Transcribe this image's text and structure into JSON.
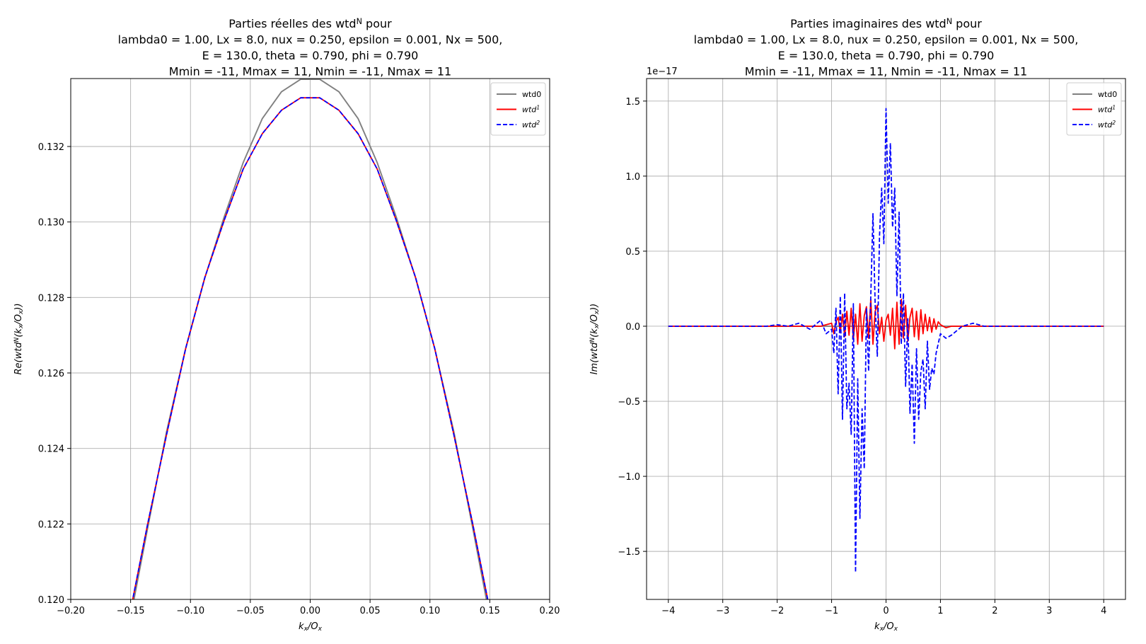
{
  "chart_data": [
    {
      "type": "line",
      "title_lines": [
        "Parties réelles des wtd^N pour",
        "lambda0 = 1.00, Lx = 8.0, nux = 0.250, epsilon = 0.001, Nx = 500,",
        "E = 130.0, theta = 0.790, phi = 0.790",
        "Mmin = -11, Mmax = 11, Nmin = -11, Nmax = 11"
      ],
      "xlabel": "k_x/O_x",
      "ylabel": "Re(wtd^N(k_x/O_x))",
      "xlim": [
        -0.2,
        0.2
      ],
      "ylim": [
        0.12,
        0.1338
      ],
      "xticks": [
        -0.2,
        -0.15,
        -0.1,
        -0.05,
        0.0,
        0.05,
        0.1,
        0.15,
        0.2
      ],
      "xtick_labels": [
        "−0.20",
        "−0.15",
        "−0.10",
        "−0.05",
        "0.00",
        "0.05",
        "0.10",
        "0.15",
        "0.20"
      ],
      "yticks": [
        0.12,
        0.122,
        0.124,
        0.126,
        0.128,
        0.13,
        0.132
      ],
      "ytick_labels": [
        "0.120",
        "0.122",
        "0.124",
        "0.126",
        "0.128",
        "0.130",
        "0.132"
      ],
      "grid": true,
      "legend_position": "upper right",
      "series": [
        {
          "name": "wtd0",
          "color": "#808080",
          "dash": "solid",
          "x": [
            -0.152,
            -0.136,
            -0.12,
            -0.104,
            -0.088,
            -0.072,
            -0.056,
            -0.04,
            -0.024,
            -0.008,
            0.008,
            0.024,
            0.04,
            0.056,
            0.072,
            0.088,
            0.104,
            0.12,
            0.136,
            0.152
          ],
          "y": [
            0.1192,
            0.12185,
            0.12444,
            0.12665,
            0.12852,
            0.13012,
            0.13157,
            0.13274,
            0.13345,
            0.13378,
            0.13378,
            0.13345,
            0.13274,
            0.13157,
            0.13012,
            0.12852,
            0.12665,
            0.12444,
            0.12185,
            0.1192
          ]
        },
        {
          "name": "wtd^1",
          "color": "#ff0000",
          "dash": "solid",
          "x": [
            -0.152,
            -0.136,
            -0.12,
            -0.104,
            -0.088,
            -0.072,
            -0.056,
            -0.04,
            -0.024,
            -0.008,
            0.008,
            0.024,
            0.04,
            0.056,
            0.072,
            0.088,
            0.104,
            0.12,
            0.136,
            0.152
          ],
          "y": [
            0.1194,
            0.12196,
            0.12436,
            0.12665,
            0.12853,
            0.13003,
            0.1314,
            0.13234,
            0.13296,
            0.13329,
            0.13329,
            0.13296,
            0.13234,
            0.1314,
            0.13003,
            0.12853,
            0.12665,
            0.12436,
            0.12196,
            0.1194
          ]
        },
        {
          "name": "wtd^2",
          "color": "#0000ff",
          "dash": "dashed",
          "x": [
            -0.152,
            -0.136,
            -0.12,
            -0.104,
            -0.088,
            -0.072,
            -0.056,
            -0.04,
            -0.024,
            -0.008,
            0.008,
            0.024,
            0.04,
            0.056,
            0.072,
            0.088,
            0.104,
            0.12,
            0.136,
            0.152
          ],
          "y": [
            0.1194,
            0.12196,
            0.12436,
            0.12665,
            0.12853,
            0.13003,
            0.1314,
            0.13234,
            0.13296,
            0.13329,
            0.13329,
            0.13296,
            0.13234,
            0.1314,
            0.13003,
            0.12853,
            0.12665,
            0.12436,
            0.12196,
            0.1194
          ]
        }
      ]
    },
    {
      "type": "line",
      "title_lines": [
        "Parties imaginaires des wtd^N pour",
        "lambda0 = 1.00, Lx = 8.0, nux = 0.250, epsilon = 0.001, Nx = 500,",
        "E = 130.0, theta = 0.790, phi = 0.790",
        "Mmin = -11, Mmax = 11, Nmin = -11, Nmax = 11"
      ],
      "xlabel": "k_x/O_x",
      "ylabel": "Im(wtd^N(k_x/O_x))",
      "y_offset_label": "1e−17",
      "y_scale": 1e-17,
      "xlim": [
        -4.4,
        4.4
      ],
      "ylim": [
        -1.82,
        1.65
      ],
      "xticks": [
        -4,
        -3,
        -2,
        -1,
        0,
        1,
        2,
        3,
        4
      ],
      "xtick_labels": [
        "−4",
        "−3",
        "−2",
        "−1",
        "0",
        "1",
        "2",
        "3",
        "4"
      ],
      "yticks": [
        -1.5,
        -1.0,
        -0.5,
        0.0,
        0.5,
        1.0,
        1.5
      ],
      "ytick_labels": [
        "−1.5",
        "−1.0",
        "−0.5",
        "0.0",
        "0.5",
        "1.0",
        "1.5"
      ],
      "grid": true,
      "legend_position": "upper right",
      "series": [
        {
          "name": "wtd0",
          "color": "#808080",
          "dash": "solid",
          "x": [
            -4,
            4
          ],
          "y": [
            0,
            0
          ]
        },
        {
          "name": "wtd^1",
          "color": "#ff0000",
          "dash": "solid",
          "x": [
            -4,
            -1.2,
            -1.1,
            -1.0,
            -0.96,
            -0.92,
            -0.88,
            -0.84,
            -0.8,
            -0.76,
            -0.72,
            -0.68,
            -0.64,
            -0.6,
            -0.56,
            -0.52,
            -0.48,
            -0.44,
            -0.4,
            -0.36,
            -0.32,
            -0.28,
            -0.24,
            -0.2,
            -0.16,
            -0.12,
            -0.08,
            -0.04,
            0.0,
            0.04,
            0.08,
            0.12,
            0.16,
            0.2,
            0.24,
            0.28,
            0.32,
            0.36,
            0.4,
            0.44,
            0.48,
            0.52,
            0.56,
            0.6,
            0.64,
            0.68,
            0.72,
            0.76,
            0.8,
            0.84,
            0.88,
            0.92,
            0.96,
            1.0,
            1.1,
            1.2,
            4
          ],
          "y": [
            0,
            0,
            0.01,
            0.02,
            -0.05,
            0.03,
            0.06,
            -0.04,
            0.08,
            -0.07,
            0.1,
            -0.06,
            0.12,
            -0.09,
            0.08,
            -0.12,
            0.15,
            -0.1,
            0.07,
            0.13,
            -0.08,
            0.18,
            -0.12,
            0.1,
            0.14,
            -0.05,
            0.06,
            -0.1,
            0.04,
            0.08,
            -0.06,
            0.12,
            -0.15,
            0.16,
            -0.12,
            0.18,
            -0.08,
            0.14,
            -0.1,
            0.06,
            0.12,
            -0.07,
            0.1,
            -0.09,
            0.11,
            -0.05,
            0.08,
            -0.03,
            0.06,
            -0.04,
            0.05,
            -0.02,
            0.03,
            0.01,
            -0.01,
            0,
            0
          ]
        },
        {
          "name": "wtd^2",
          "color": "#0000ff",
          "dash": "dashed",
          "x": [
            -4,
            -2.2,
            -2.0,
            -1.8,
            -1.6,
            -1.4,
            -1.2,
            -1.1,
            -1.0,
            -0.96,
            -0.92,
            -0.88,
            -0.84,
            -0.8,
            -0.76,
            -0.72,
            -0.68,
            -0.64,
            -0.6,
            -0.56,
            -0.52,
            -0.48,
            -0.44,
            -0.4,
            -0.36,
            -0.32,
            -0.28,
            -0.24,
            -0.2,
            -0.16,
            -0.12,
            -0.08,
            -0.04,
            0.0,
            0.04,
            0.08,
            0.12,
            0.16,
            0.2,
            0.24,
            0.28,
            0.32,
            0.36,
            0.4,
            0.44,
            0.48,
            0.52,
            0.56,
            0.6,
            0.64,
            0.68,
            0.72,
            0.76,
            0.8,
            0.84,
            0.88,
            0.92,
            1.0,
            1.1,
            1.2,
            1.4,
            1.6,
            1.8,
            2.0,
            2.2,
            4
          ],
          "y": [
            0,
            0,
            0.01,
            0.0,
            0.02,
            -0.02,
            0.04,
            -0.05,
            -0.02,
            -0.18,
            0.12,
            -0.45,
            0.2,
            -0.62,
            0.22,
            -0.55,
            -0.38,
            -0.72,
            0.15,
            -1.64,
            -0.35,
            -1.28,
            -0.55,
            -0.95,
            0.12,
            -0.3,
            0.2,
            0.75,
            0.15,
            -0.2,
            0.6,
            0.92,
            0.55,
            1.45,
            0.82,
            1.22,
            0.66,
            0.92,
            0.2,
            0.76,
            -0.12,
            0.22,
            -0.4,
            0.05,
            -0.58,
            -0.25,
            -0.78,
            -0.15,
            -0.62,
            -0.3,
            -0.22,
            -0.55,
            -0.1,
            -0.42,
            -0.28,
            -0.32,
            -0.18,
            -0.05,
            -0.08,
            -0.06,
            0.0,
            0.02,
            0.0,
            0.0,
            0.0,
            0
          ]
        }
      ]
    }
  ]
}
